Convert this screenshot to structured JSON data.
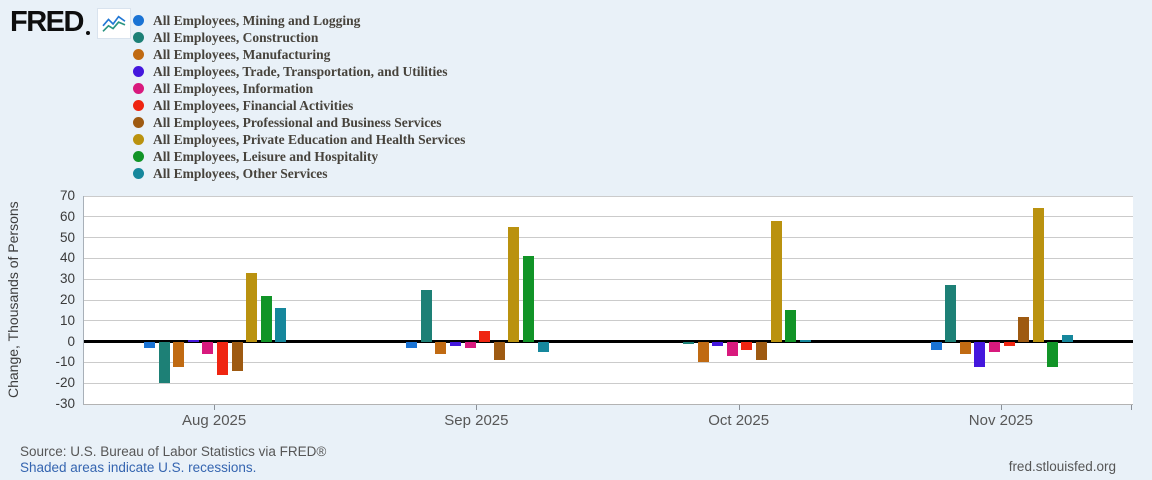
{
  "logo": {
    "text": "FRED"
  },
  "footer": {
    "source": "Source: U.S. Bureau of Labor Statistics via FRED®",
    "recession_note": "Shaded areas indicate U.S. recessions.",
    "watermark": "fred.stlouisfed.org"
  },
  "colors": {
    "background": "#e9f1f8",
    "plot_background": "#ffffff",
    "gridline": "#cbcbcb",
    "zero_line": "#000000",
    "axis_text": "#3a3a3a",
    "month_text": "#575757",
    "legend_text": "#47433c",
    "source_text": "#565656",
    "link_text": "#3565b0",
    "sparkline_blue": "#2277d4",
    "sparkline_teal": "#2a9482"
  },
  "chart_data": {
    "type": "bar",
    "title": "",
    "xlabel": "",
    "ylabel": "Change, Thousands of Persons",
    "ylim": [
      -30,
      70
    ],
    "ytick_step": 10,
    "grid": true,
    "legend_position": "top-left",
    "categories": [
      "Aug 2025",
      "Sep 2025",
      "Oct 2025",
      "Nov 2025"
    ],
    "series": [
      {
        "name": "All Employees, Mining and Logging",
        "color": "#1a73d4",
        "values": [
          -3,
          -3,
          0,
          -4
        ]
      },
      {
        "name": "All Employees, Construction",
        "color": "#1d8076",
        "values": [
          -20,
          25,
          -1,
          27
        ]
      },
      {
        "name": "All Employees, Manufacturing",
        "color": "#c06a12",
        "values": [
          -12,
          -6,
          -10,
          -6
        ]
      },
      {
        "name": "All Employees, Trade, Transportation, and Utilities",
        "color": "#4417dd",
        "values": [
          1,
          -2,
          -2,
          -12
        ]
      },
      {
        "name": "All Employees, Information",
        "color": "#d8197d",
        "values": [
          -6,
          -3,
          -7,
          -5
        ]
      },
      {
        "name": "All Employees, Financial Activities",
        "color": "#ef2511",
        "values": [
          -16,
          5,
          -4,
          -2
        ]
      },
      {
        "name": "All Employees, Professional and Business Services",
        "color": "#9e5a11",
        "values": [
          -14,
          -9,
          -9,
          12
        ]
      },
      {
        "name": "All Employees, Private Education and Health Services",
        "color": "#ba920f",
        "values": [
          33,
          55,
          58,
          64
        ]
      },
      {
        "name": "All Employees, Leisure and Hospitality",
        "color": "#119427",
        "values": [
          22,
          41,
          15,
          -12
        ]
      },
      {
        "name": "All Employees, Other Services",
        "color": "#16879c",
        "values": [
          16,
          -5,
          1,
          3
        ]
      }
    ]
  }
}
